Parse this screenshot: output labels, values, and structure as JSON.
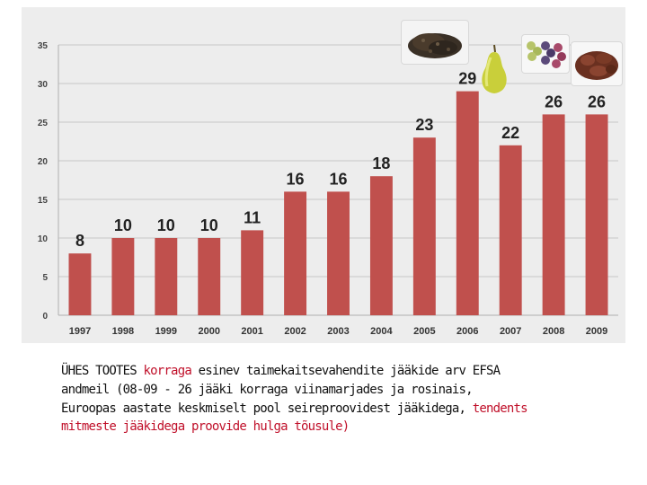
{
  "chart_data": {
    "type": "bar",
    "categories": [
      "1997",
      "1998",
      "1999",
      "2000",
      "2001",
      "2002",
      "2003",
      "2004",
      "2005",
      "2006",
      "2007",
      "2008",
      "2009"
    ],
    "values": [
      8,
      10,
      10,
      10,
      11,
      16,
      16,
      18,
      23,
      29,
      22,
      26,
      26
    ],
    "ylim": [
      0,
      35
    ],
    "yticks": [
      "0",
      "5",
      "10",
      "15",
      "20",
      "25",
      "30",
      "35"
    ],
    "grid": true,
    "legend": "none",
    "bar_color": "#c0504d",
    "label_color": "#222222"
  },
  "images": {
    "peppercorns": "peppercorns-photo",
    "pear": "pear-photo",
    "grapes": "grapes-photo",
    "raisins": "raisins-photo"
  },
  "caption": {
    "part1": "ÜHES TOOTES ",
    "part2": "korraga",
    "part3": " esinev taimekaitsevahendite jääkide  arv EFSA andmeil (08-09 - 26 jääki korraga viinamarjades ja rosinais,  Euroopas aastate keskmiselt pool seireproovidest jääkidega, ",
    "part4": "tendents mitmeste jääkidega proovide hulga tõusule)"
  }
}
